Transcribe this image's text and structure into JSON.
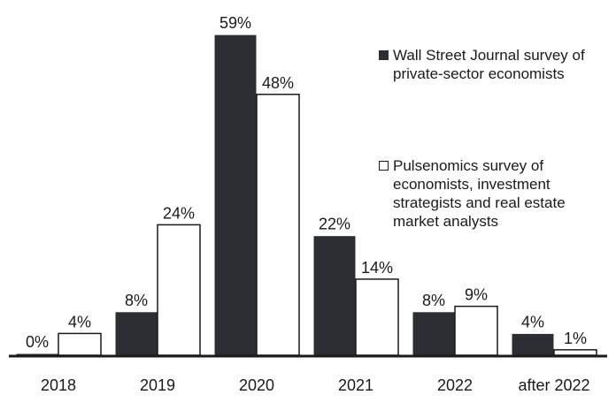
{
  "chart_data": {
    "type": "bar",
    "categories": [
      "2018",
      "2019",
      "2020",
      "2021",
      "2022",
      "after 2022"
    ],
    "series": [
      {
        "name": "Wall Street Journal survey of private-sector economists",
        "values": [
          0,
          8,
          59,
          22,
          8,
          4
        ],
        "labels": [
          "0%",
          "8%",
          "59%",
          "22%",
          "8%",
          "4%"
        ],
        "color": "#2b2f33"
      },
      {
        "name": "Pulsenomics survey of economists, investment strategists and real estate market analysts",
        "values": [
          4,
          24,
          48,
          14,
          9,
          1
        ],
        "labels": [
          "4%",
          "24%",
          "48%",
          "14%",
          "9%",
          "1%"
        ],
        "color": "#ffffff"
      }
    ],
    "unit": "%",
    "ylim": [
      0,
      59
    ],
    "grid": false,
    "legend_position": "top-right"
  }
}
